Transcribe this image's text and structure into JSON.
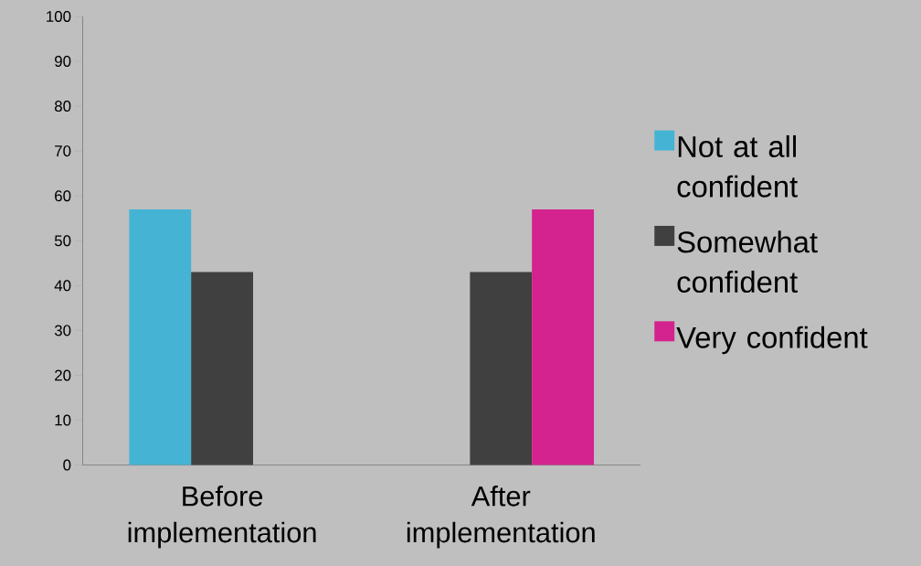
{
  "chart_data": {
    "type": "bar",
    "categories": [
      "Before implementation",
      "After implementation"
    ],
    "series": [
      {
        "name": "Not at all confident",
        "color": "#45b4d4",
        "values": [
          57,
          0
        ]
      },
      {
        "name": "Somewhat confident",
        "color": "#404040",
        "values": [
          43,
          43
        ]
      },
      {
        "name": "Very confident",
        "color": "#d4228e",
        "values": [
          0,
          57
        ]
      }
    ],
    "ylim": [
      0,
      100
    ],
    "yticks": [
      0,
      10,
      20,
      30,
      40,
      50,
      60,
      70,
      80,
      90,
      100
    ],
    "grid": false,
    "legend": "right"
  }
}
